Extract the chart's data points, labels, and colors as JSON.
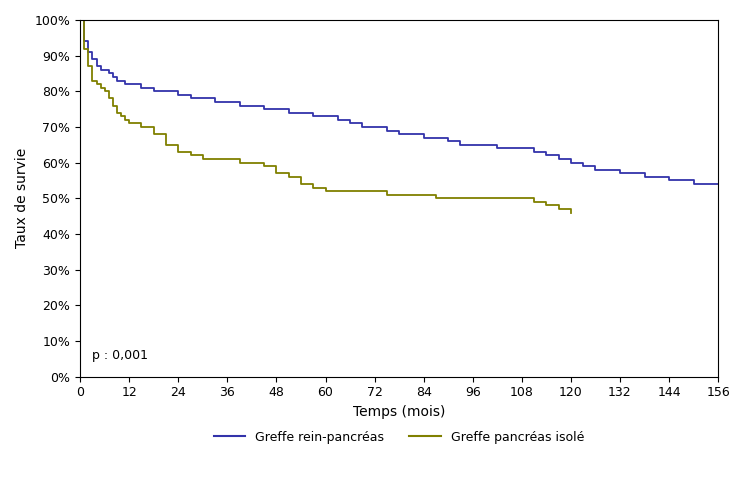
{
  "title": "",
  "xlabel": "Temps (mois)",
  "ylabel": "Taux de survie",
  "pvalue_text": "p : 0,001",
  "xlim": [
    0,
    156
  ],
  "ylim": [
    0,
    1.0
  ],
  "xticks": [
    0,
    12,
    24,
    36,
    48,
    60,
    72,
    84,
    96,
    108,
    120,
    132,
    144,
    156
  ],
  "yticks": [
    0.0,
    0.1,
    0.2,
    0.3,
    0.4,
    0.5,
    0.6,
    0.7,
    0.8,
    0.9,
    1.0
  ],
  "ytick_labels": [
    "0%",
    "10%",
    "20%",
    "30%",
    "40%",
    "50%",
    "60%",
    "70%",
    "80%",
    "90%",
    "100%"
  ],
  "line_blue_color": "#3333aa",
  "line_green_color": "#808000",
  "legend_label_blue": "Greffe rein-pancréas",
  "legend_label_green": "Greffe pancréas isolé",
  "blue_x": [
    0,
    1,
    2,
    3,
    4,
    5,
    6,
    7,
    8,
    9,
    10,
    11,
    12,
    15,
    18,
    21,
    24,
    27,
    30,
    33,
    36,
    39,
    42,
    45,
    48,
    51,
    54,
    57,
    60,
    63,
    66,
    69,
    72,
    75,
    78,
    81,
    84,
    87,
    90,
    93,
    96,
    99,
    102,
    105,
    108,
    111,
    114,
    117,
    120,
    123,
    126,
    129,
    132,
    135,
    138,
    141,
    144,
    147,
    150,
    153,
    156
  ],
  "blue_y": [
    1.0,
    0.94,
    0.91,
    0.89,
    0.87,
    0.86,
    0.86,
    0.85,
    0.84,
    0.83,
    0.83,
    0.82,
    0.82,
    0.81,
    0.8,
    0.8,
    0.79,
    0.78,
    0.78,
    0.77,
    0.77,
    0.76,
    0.76,
    0.75,
    0.75,
    0.74,
    0.74,
    0.73,
    0.73,
    0.72,
    0.71,
    0.7,
    0.7,
    0.69,
    0.68,
    0.68,
    0.67,
    0.67,
    0.66,
    0.65,
    0.65,
    0.65,
    0.64,
    0.64,
    0.64,
    0.63,
    0.62,
    0.61,
    0.6,
    0.59,
    0.58,
    0.58,
    0.57,
    0.57,
    0.56,
    0.56,
    0.55,
    0.55,
    0.54,
    0.54,
    0.54
  ],
  "green_x": [
    0,
    1,
    2,
    3,
    4,
    5,
    6,
    7,
    8,
    9,
    10,
    11,
    12,
    15,
    18,
    21,
    24,
    27,
    30,
    33,
    36,
    39,
    42,
    45,
    48,
    51,
    54,
    57,
    60,
    63,
    66,
    69,
    72,
    75,
    78,
    81,
    84,
    87,
    90,
    93,
    96,
    99,
    102,
    105,
    108,
    111,
    114,
    117,
    120
  ],
  "green_y": [
    1.0,
    0.92,
    0.87,
    0.83,
    0.82,
    0.81,
    0.8,
    0.78,
    0.76,
    0.74,
    0.73,
    0.72,
    0.71,
    0.7,
    0.68,
    0.65,
    0.63,
    0.62,
    0.61,
    0.61,
    0.61,
    0.6,
    0.6,
    0.59,
    0.57,
    0.56,
    0.54,
    0.53,
    0.52,
    0.52,
    0.52,
    0.52,
    0.52,
    0.51,
    0.51,
    0.51,
    0.51,
    0.5,
    0.5,
    0.5,
    0.5,
    0.5,
    0.5,
    0.5,
    0.5,
    0.49,
    0.48,
    0.47,
    0.46
  ]
}
